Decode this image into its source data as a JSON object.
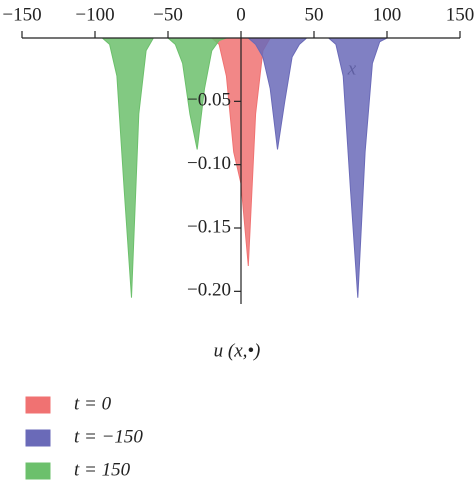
{
  "chart_data": {
    "type": "area",
    "x_label": "x",
    "y_label": "u (x,•)",
    "xlim": [
      -150,
      150
    ],
    "ylim": [
      -0.21,
      0
    ],
    "xticks": [
      {
        "value": -150,
        "label": "−150"
      },
      {
        "value": -100,
        "label": "−100"
      },
      {
        "value": -50,
        "label": "−50"
      },
      0,
      50,
      100,
      150
    ],
    "yticks": [
      {
        "value": -0.05,
        "label": "−0.05"
      },
      {
        "value": -0.1,
        "label": "−0.10"
      },
      {
        "value": -0.15,
        "label": "−0.15"
      },
      {
        "value": -0.2,
        "label": "−0.20"
      }
    ],
    "series": [
      {
        "name": "t = 0",
        "color": "#f07272",
        "x": [
          -20,
          -15,
          -10,
          -5,
          0,
          5,
          10,
          15,
          20
        ],
        "values": [
          0,
          -0.005,
          -0.03,
          -0.09,
          -0.115,
          -0.18,
          -0.06,
          -0.01,
          0
        ]
      },
      {
        "name": "t = −150",
        "color": "#6a6ab8",
        "x": [
          5,
          10,
          15,
          20,
          25,
          30,
          35,
          40,
          45,
          50,
          55,
          60,
          65,
          70,
          75,
          80,
          85,
          90,
          95,
          100
        ],
        "values": [
          0,
          -0.005,
          -0.015,
          -0.04,
          -0.088,
          -0.05,
          -0.015,
          -0.005,
          0,
          0,
          0,
          0,
          -0.005,
          -0.03,
          -0.12,
          -0.205,
          -0.09,
          -0.02,
          -0.003,
          0
        ]
      },
      {
        "name": "t = 150",
        "color": "#6cc06c",
        "x": [
          -95,
          -90,
          -85,
          -80,
          -75,
          -70,
          -65,
          -60,
          -55,
          -50,
          -45,
          -40,
          -35,
          -30,
          -25,
          -20,
          -15,
          -10
        ],
        "values": [
          0,
          -0.005,
          -0.03,
          -0.12,
          -0.205,
          -0.06,
          -0.01,
          0,
          0,
          0,
          -0.005,
          -0.02,
          -0.06,
          -0.088,
          -0.04,
          -0.01,
          -0.002,
          0
        ]
      }
    ]
  }
}
